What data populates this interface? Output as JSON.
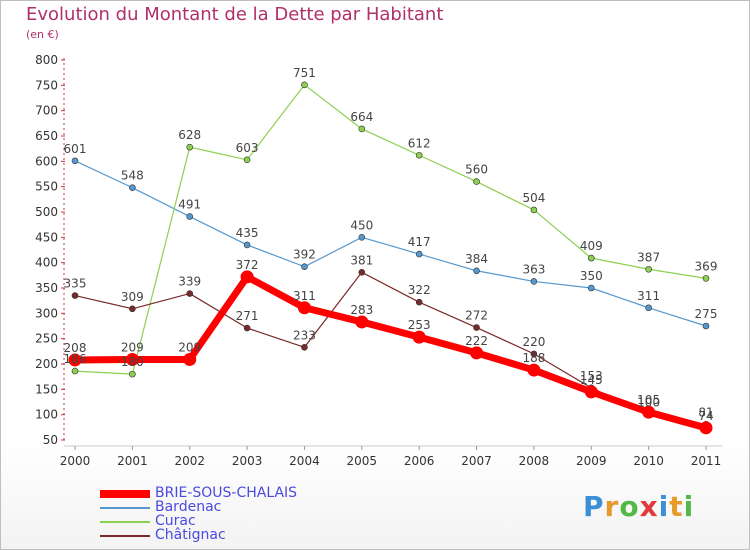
{
  "title": "Evolution du Montant de la Dette par Habitant",
  "unit": "(en €)",
  "logo_text": "Proxiti",
  "chart_data": {
    "type": "line",
    "title": "Evolution du Montant de la Dette par Habitant",
    "subtitle": "(en €)",
    "x": [
      2000,
      2001,
      2002,
      2003,
      2004,
      2005,
      2006,
      2007,
      2008,
      2009,
      2010,
      2011
    ],
    "ylim": [
      50,
      800
    ],
    "yticks": [
      50,
      100,
      150,
      200,
      250,
      300,
      350,
      400,
      450,
      500,
      550,
      600,
      650,
      700,
      750,
      800
    ],
    "grid": false,
    "legend_placement": "bottom-left",
    "series": [
      {
        "name": "BRIE-SOUS-CHALAIS",
        "color": "#ff0000",
        "emphasis": true,
        "values": [
          208,
          209,
          209,
          372,
          311,
          283,
          253,
          222,
          188,
          145,
          105,
          74
        ]
      },
      {
        "name": "Bardenac",
        "color": "#5598d0",
        "values": [
          601,
          548,
          491,
          435,
          392,
          450,
          417,
          384,
          363,
          350,
          311,
          275
        ]
      },
      {
        "name": "Curac",
        "color": "#8cd050",
        "values": [
          186,
          180,
          628,
          603,
          751,
          664,
          612,
          560,
          504,
          409,
          387,
          369
        ]
      },
      {
        "name": "Châtignac",
        "color": "#7a2a2a",
        "values": [
          335,
          309,
          339,
          271,
          233,
          381,
          322,
          272,
          220,
          153,
          100,
          81
        ]
      }
    ]
  }
}
